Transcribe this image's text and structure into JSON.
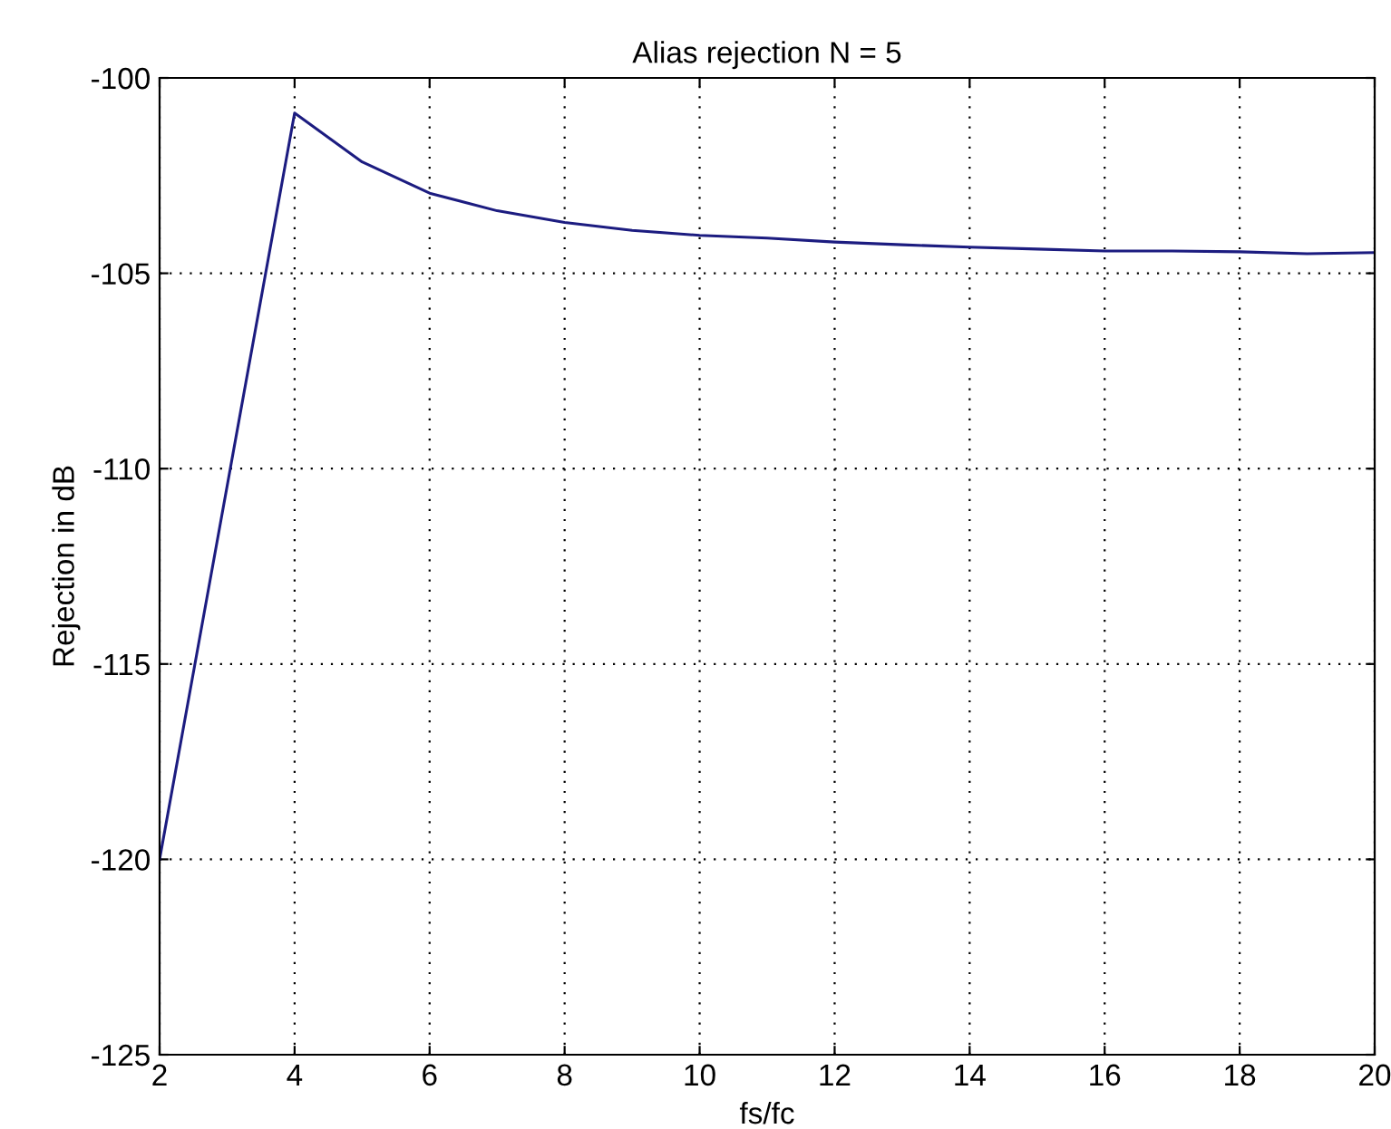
{
  "chart_data": {
    "type": "line",
    "title": "Alias rejection N = 5",
    "xlabel": "fs/fc",
    "ylabel": "Rejection in dB",
    "series": [
      {
        "color": "#1c1c80",
        "x": [
          2,
          4,
          5,
          6,
          7,
          8,
          9,
          10,
          11,
          12,
          13,
          14,
          15,
          16,
          17,
          18,
          19,
          20
        ],
        "values": [
          -120,
          -100.9,
          -102.15,
          -102.95,
          -103.4,
          -103.7,
          -103.9,
          -104.03,
          -104.1,
          -104.2,
          -104.27,
          -104.33,
          -104.38,
          -104.43,
          -104.43,
          -104.45,
          -104.5,
          -104.47
        ]
      }
    ],
    "xlim": [
      2,
      20
    ],
    "xticks": [
      2,
      4,
      6,
      8,
      10,
      12,
      14,
      16,
      18,
      20
    ],
    "ylim": [
      -125,
      -100
    ],
    "yticks": [
      -125,
      -120,
      -115,
      -110,
      -105,
      -100
    ],
    "grid": true,
    "line_style": "solid",
    "marker": "none",
    "legend": false
  }
}
